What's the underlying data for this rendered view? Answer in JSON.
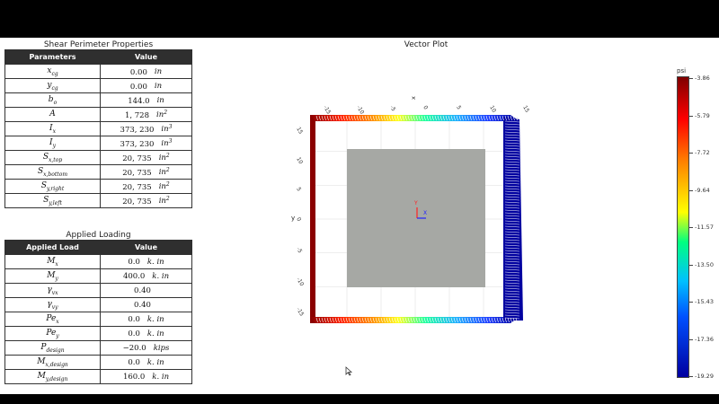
{
  "shear_table": {
    "title": "Shear Perimeter Properties",
    "headers": [
      "Parameters",
      "Value"
    ],
    "rows": [
      {
        "param": "x",
        "sub": "cg",
        "sup": "",
        "value": "0.00",
        "unit": "in",
        "unit_sup": ""
      },
      {
        "param": "y",
        "sub": "cg",
        "sup": "",
        "value": "0.00",
        "unit": "in",
        "unit_sup": ""
      },
      {
        "param": "b",
        "sub": "o",
        "sup": "",
        "value": "144.0",
        "unit": "in",
        "unit_sup": ""
      },
      {
        "param": "A",
        "sub": "",
        "sup": "",
        "value": "1, 728",
        "unit": "in",
        "unit_sup": "2"
      },
      {
        "param": "I",
        "sub": "x",
        "sup": "",
        "value": "373, 230",
        "unit": "in",
        "unit_sup": "3"
      },
      {
        "param": "I",
        "sub": "y",
        "sup": "",
        "value": "373, 230",
        "unit": "in",
        "unit_sup": "3"
      },
      {
        "param": "S",
        "sub": "x,top",
        "sup": "",
        "value": "20, 735",
        "unit": "in",
        "unit_sup": "2"
      },
      {
        "param": "S",
        "sub": "x,bottom",
        "sup": "",
        "value": "20, 735",
        "unit": "in",
        "unit_sup": "2"
      },
      {
        "param": "S",
        "sub": "y,right",
        "sup": "",
        "value": "20, 735",
        "unit": "in",
        "unit_sup": "2"
      },
      {
        "param": "S",
        "sub": "y,left",
        "sup": "",
        "value": "20, 735",
        "unit": "in",
        "unit_sup": "2"
      }
    ]
  },
  "load_table": {
    "title": "Applied Loading",
    "headers": [
      "Applied Load",
      "Value"
    ],
    "rows": [
      {
        "param": "M",
        "sub": "x",
        "value": "0.0",
        "unit": "k. in"
      },
      {
        "param": "M",
        "sub": "y",
        "value": "400.0",
        "unit": "k. in"
      },
      {
        "param": "γ",
        "sub": "vx",
        "value": "0.40",
        "unit": ""
      },
      {
        "param": "γ",
        "sub": "vy",
        "value": "0.40",
        "unit": ""
      },
      {
        "param": "Pe",
        "sub": "x",
        "value": "0.0",
        "unit": "k. in"
      },
      {
        "param": "Pe",
        "sub": "y",
        "value": "0.0",
        "unit": "k. in"
      },
      {
        "param": "P",
        "sub": "design",
        "value": "−20.0",
        "unit": "kips"
      },
      {
        "param": "M",
        "sub": "x,design",
        "value": "0.0",
        "unit": "k. in"
      },
      {
        "param": "M",
        "sub": "y,design",
        "value": "160.0",
        "unit": "k. in"
      }
    ]
  },
  "plot": {
    "title": "Vector Plot",
    "x_axis_label": "x",
    "y_axis_label": "y",
    "x_ticks": [
      "-15",
      "-10",
      "-5",
      "0",
      "5",
      "10",
      "15"
    ],
    "y_ticks": [
      "15",
      "10",
      "5",
      "0",
      "-5",
      "-10",
      "-15"
    ],
    "triad": {
      "x": "X",
      "y": "Y"
    },
    "colors": {
      "column": "#a6a8a4",
      "triad_x": "#2222ff",
      "triad_y": "#ff2222"
    }
  },
  "colorbar": {
    "title": "psi",
    "labels": [
      "-3.86",
      "-5.79",
      "-7.72",
      "-9.64",
      "-11.57",
      "-13.50",
      "-15.43",
      "-17.36",
      "-19.29"
    ]
  }
}
